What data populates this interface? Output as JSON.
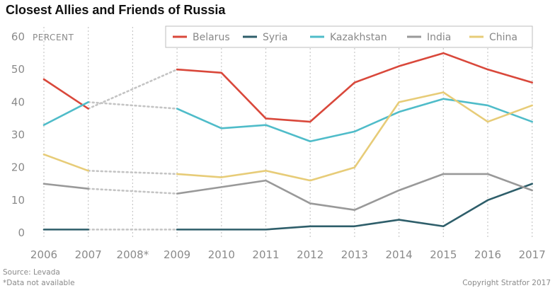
{
  "chart_data": {
    "type": "line",
    "title": "Closest Allies and Friends of Russia",
    "ylabel": "PERCENT",
    "xlabel": "",
    "x": [
      "2006",
      "2007",
      "2008*",
      "2009",
      "2010",
      "2011",
      "2012",
      "2013",
      "2014",
      "2015",
      "2016",
      "2017"
    ],
    "ylim": [
      0,
      60
    ],
    "yticks": [
      0,
      10,
      20,
      30,
      40,
      50,
      60
    ],
    "grid": "vertical-dotted",
    "legend_position": "top",
    "missing": [
      "2008*"
    ],
    "series": [
      {
        "name": "Belarus",
        "color": "#d9483b",
        "values": [
          47,
          38,
          null,
          50,
          49,
          35,
          34,
          46,
          51,
          55,
          50,
          46
        ]
      },
      {
        "name": "Syria",
        "color": "#2e5e6a",
        "values": [
          1,
          1,
          null,
          1,
          1,
          1,
          2,
          2,
          4,
          2,
          10,
          15
        ]
      },
      {
        "name": "Kazakhstan",
        "color": "#4fbcc9",
        "values": [
          33,
          40,
          null,
          38,
          32,
          33,
          28,
          31,
          37,
          41,
          39,
          34
        ]
      },
      {
        "name": "India",
        "color": "#999999",
        "values": [
          15,
          13.5,
          null,
          12,
          14,
          16,
          9,
          7,
          13,
          18,
          18,
          13
        ]
      },
      {
        "name": "China",
        "color": "#e7cc78",
        "values": [
          24,
          19,
          null,
          18,
          17,
          19,
          16,
          20,
          40,
          43,
          34,
          39
        ]
      }
    ],
    "source": "Source: Levada",
    "note": "*Data not available",
    "copyright": "Copyright Stratfor 2017"
  }
}
